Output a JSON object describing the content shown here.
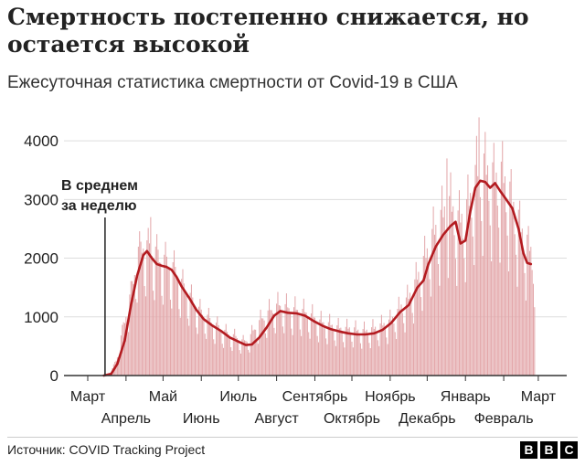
{
  "title": "Смертность постепенно снижается, но остается высокой",
  "subtitle": "Ежесуточная статистика смертности от Covid-19 в США",
  "source": "Источник: COVID Tracking Project",
  "logo": [
    "B",
    "B",
    "C"
  ],
  "colors": {
    "bars": "#e3a6a9",
    "line": "#b31b20",
    "text": "#222222",
    "grid": "#dddddd",
    "axis": "#333333"
  },
  "chart_data": {
    "type": "bar",
    "ylim": [
      0,
      4500
    ],
    "yticks": [
      0,
      1000,
      2000,
      3000,
      4000
    ],
    "grid": true,
    "x_start": "2020-03-01",
    "x_end": "2021-03-07",
    "months_top": [
      "Март",
      "Май",
      "Июль",
      "Сентябрь",
      "Ноябрь",
      "Январь",
      "Март"
    ],
    "months_top_dates": [
      "2020-03-01",
      "2020-05-01",
      "2020-07-01",
      "2020-09-01",
      "2020-11-01",
      "2021-01-01",
      "2021-03-01"
    ],
    "months_bottom": [
      "Апрель",
      "Июнь",
      "Август",
      "Октябрь",
      "Декабрь",
      "Февраль"
    ],
    "months_bottom_dates": [
      "2020-04-01",
      "2020-06-01",
      "2020-08-01",
      "2020-10-01",
      "2020-12-01",
      "2021-02-01"
    ],
    "series": [
      {
        "values": [
          [
            "2020-03-01",
            0
          ],
          [
            "2020-03-10",
            2
          ],
          [
            "2020-03-15",
            10
          ],
          [
            "2020-03-20",
            60
          ],
          [
            "2020-03-25",
            300
          ],
          [
            "2020-03-30",
            800
          ],
          [
            "2020-04-05",
            1300
          ],
          [
            "2020-04-10",
            1900
          ],
          [
            "2020-04-15",
            2100
          ],
          [
            "2020-04-20",
            2000
          ],
          [
            "2020-04-25",
            1950
          ],
          [
            "2020-04-30",
            1850
          ],
          [
            "2020-05-05",
            1800
          ],
          [
            "2020-05-10",
            1700
          ],
          [
            "2020-05-15",
            1500
          ],
          [
            "2020-05-20",
            1350
          ],
          [
            "2020-05-25",
            1200
          ],
          [
            "2020-05-30",
            1050
          ],
          [
            "2020-06-05",
            950
          ],
          [
            "2020-06-10",
            850
          ],
          [
            "2020-06-15",
            780
          ],
          [
            "2020-06-20",
            700
          ],
          [
            "2020-06-25",
            650
          ],
          [
            "2020-07-01",
            600
          ],
          [
            "2020-07-05",
            540
          ],
          [
            "2020-07-10",
            600
          ],
          [
            "2020-07-15",
            780
          ],
          [
            "2020-07-20",
            900
          ],
          [
            "2020-07-25",
            1000
          ],
          [
            "2020-07-31",
            1100
          ],
          [
            "2020-08-05",
            1120
          ],
          [
            "2020-08-10",
            1080
          ],
          [
            "2020-08-15",
            1050
          ],
          [
            "2020-08-20",
            1040
          ],
          [
            "2020-08-25",
            1000
          ],
          [
            "2020-08-31",
            930
          ],
          [
            "2020-09-05",
            860
          ],
          [
            "2020-09-10",
            830
          ],
          [
            "2020-09-15",
            800
          ],
          [
            "2020-09-20",
            760
          ],
          [
            "2020-09-25",
            740
          ],
          [
            "2020-09-30",
            760
          ],
          [
            "2020-10-05",
            720
          ],
          [
            "2020-10-10",
            710
          ],
          [
            "2020-10-15",
            720
          ],
          [
            "2020-10-20",
            760
          ],
          [
            "2020-10-25",
            800
          ],
          [
            "2020-10-31",
            850
          ],
          [
            "2020-11-05",
            950
          ],
          [
            "2020-11-10",
            1100
          ],
          [
            "2020-11-15",
            1200
          ],
          [
            "2020-11-20",
            1400
          ],
          [
            "2020-11-25",
            1650
          ],
          [
            "2020-11-30",
            1900
          ],
          [
            "2020-12-05",
            2200
          ],
          [
            "2020-12-10",
            2400
          ],
          [
            "2020-12-15",
            2600
          ],
          [
            "2020-12-20",
            2700
          ],
          [
            "2020-12-25",
            2450
          ],
          [
            "2020-12-31",
            2500
          ],
          [
            "2021-01-05",
            2800
          ],
          [
            "2021-01-10",
            3200
          ],
          [
            "2021-01-15",
            3300
          ],
          [
            "2021-01-20",
            3200
          ],
          [
            "2021-01-25",
            3100
          ],
          [
            "2021-01-31",
            3150
          ],
          [
            "2021-02-05",
            2900
          ],
          [
            "2021-02-10",
            2600
          ],
          [
            "2021-02-15",
            2300
          ],
          [
            "2021-02-20",
            2050
          ],
          [
            "2021-02-25",
            1920
          ]
        ],
        "daily_peak_annotation": [
          [
            "2020-04-21",
            2700
          ],
          [
            "2020-12-17",
            3700
          ],
          [
            "2021-01-12",
            4400
          ]
        ]
      }
    ],
    "line": {
      "type": "line",
      "values": [
        [
          "2020-03-14",
          0
        ],
        [
          "2020-03-20",
          30
        ],
        [
          "2020-03-25",
          200
        ],
        [
          "2020-03-31",
          600
        ],
        [
          "2020-04-05",
          1200
        ],
        [
          "2020-04-10",
          1700
        ],
        [
          "2020-04-15",
          2050
        ],
        [
          "2020-04-18",
          2120
        ],
        [
          "2020-04-22",
          2000
        ],
        [
          "2020-04-26",
          1900
        ],
        [
          "2020-04-30",
          1870
        ],
        [
          "2020-05-04",
          1850
        ],
        [
          "2020-05-08",
          1800
        ],
        [
          "2020-05-12",
          1680
        ],
        [
          "2020-05-16",
          1520
        ],
        [
          "2020-05-22",
          1330
        ],
        [
          "2020-05-28",
          1120
        ],
        [
          "2020-06-03",
          960
        ],
        [
          "2020-06-10",
          850
        ],
        [
          "2020-06-17",
          760
        ],
        [
          "2020-06-24",
          650
        ],
        [
          "2020-07-01",
          580
        ],
        [
          "2020-07-07",
          520
        ],
        [
          "2020-07-12",
          530
        ],
        [
          "2020-07-18",
          650
        ],
        [
          "2020-07-24",
          820
        ],
        [
          "2020-07-30",
          1020
        ],
        [
          "2020-08-04",
          1100
        ],
        [
          "2020-08-10",
          1070
        ],
        [
          "2020-08-17",
          1060
        ],
        [
          "2020-08-24",
          1020
        ],
        [
          "2020-08-31",
          930
        ],
        [
          "2020-09-07",
          850
        ],
        [
          "2020-09-14",
          790
        ],
        [
          "2020-09-21",
          750
        ],
        [
          "2020-09-28",
          720
        ],
        [
          "2020-10-05",
          700
        ],
        [
          "2020-10-12",
          700
        ],
        [
          "2020-10-19",
          720
        ],
        [
          "2020-10-26",
          780
        ],
        [
          "2020-11-02",
          900
        ],
        [
          "2020-11-09",
          1080
        ],
        [
          "2020-11-16",
          1200
        ],
        [
          "2020-11-23",
          1500
        ],
        [
          "2020-11-28",
          1620
        ],
        [
          "2020-12-02",
          1900
        ],
        [
          "2020-12-08",
          2200
        ],
        [
          "2020-12-14",
          2400
        ],
        [
          "2020-12-20",
          2550
        ],
        [
          "2020-12-24",
          2620
        ],
        [
          "2020-12-28",
          2250
        ],
        [
          "2021-01-01",
          2300
        ],
        [
          "2021-01-05",
          2800
        ],
        [
          "2021-01-09",
          3200
        ],
        [
          "2021-01-13",
          3320
        ],
        [
          "2021-01-17",
          3300
        ],
        [
          "2021-01-21",
          3200
        ],
        [
          "2021-01-25",
          3280
        ],
        [
          "2021-01-29",
          3150
        ],
        [
          "2021-02-03",
          3000
        ],
        [
          "2021-02-08",
          2850
        ],
        [
          "2021-02-13",
          2500
        ],
        [
          "2021-02-17",
          2080
        ],
        [
          "2021-02-20",
          1920
        ],
        [
          "2021-02-23",
          1900
        ]
      ]
    },
    "annotation": {
      "text": [
        "В среднем",
        "за неделю"
      ],
      "date": "2020-03-15"
    }
  }
}
